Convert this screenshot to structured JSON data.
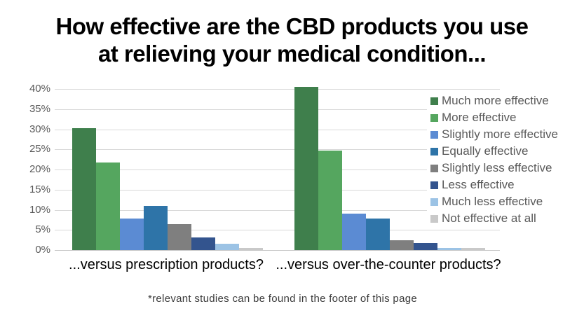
{
  "title": {
    "line1": "How effective are the CBD products you use",
    "line2": "at relieving your medical condition..."
  },
  "footnote": "*relevant studies can be found in the footer of this page",
  "chart_data": {
    "type": "bar",
    "title": "How effective are the CBD products you use at relieving your medical condition...",
    "categories": [
      "...versus prescription products?",
      "...versus over-the-counter products?"
    ],
    "series": [
      {
        "name": "Much more effective",
        "color": "#3F7F4C",
        "values": [
          30.3,
          40.5
        ]
      },
      {
        "name": "More effective",
        "color": "#55A65F",
        "values": [
          21.7,
          24.7
        ]
      },
      {
        "name": "Slightly more effective",
        "color": "#5B8BD3",
        "values": [
          7.9,
          9.0
        ]
      },
      {
        "name": "Equally effective",
        "color": "#2E74A8",
        "values": [
          11.0,
          7.8
        ]
      },
      {
        "name": "Slightly less effective",
        "color": "#7F7F7F",
        "values": [
          6.4,
          2.5
        ]
      },
      {
        "name": "Less effective",
        "color": "#33548E",
        "values": [
          3.1,
          1.7
        ]
      },
      {
        "name": "Much less effective",
        "color": "#9CC3E5",
        "values": [
          1.5,
          0.6
        ]
      },
      {
        "name": "Not effective at all",
        "color": "#C9C9C9",
        "values": [
          0.5,
          0.5
        ]
      }
    ],
    "y_axis": {
      "tick_labels": [
        "0%",
        "5%",
        "10%",
        "15%",
        "20%",
        "25%",
        "30%",
        "35%",
        "40%"
      ],
      "min": 0,
      "max": 40,
      "step": 5,
      "unit": "%"
    },
    "grid": true,
    "legend_position": "right"
  },
  "colors": {
    "gridline": "#D9D9D9",
    "axis_line": "#C8C8C8",
    "axis_text": "#595959",
    "legend_text": "#595959",
    "title_text": "#000000",
    "category_text": "#000000"
  }
}
